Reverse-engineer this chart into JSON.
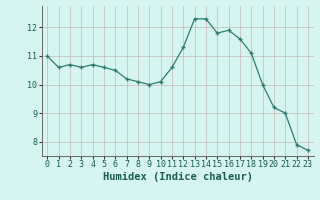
{
  "x": [
    0,
    1,
    2,
    3,
    4,
    5,
    6,
    7,
    8,
    9,
    10,
    11,
    12,
    13,
    14,
    15,
    16,
    17,
    18,
    19,
    20,
    21,
    22,
    23
  ],
  "y": [
    11.0,
    10.6,
    10.7,
    10.6,
    10.7,
    10.6,
    10.5,
    10.2,
    10.1,
    10.0,
    10.1,
    10.6,
    11.3,
    12.3,
    12.3,
    11.8,
    11.9,
    11.6,
    11.1,
    10.0,
    9.2,
    9.0,
    7.9,
    7.7
  ],
  "xlabel": "Humidex (Indice chaleur)",
  "ylim": [
    7.5,
    12.75
  ],
  "xlim": [
    -0.5,
    23.5
  ],
  "yticks": [
    8,
    9,
    10,
    11,
    12
  ],
  "xticks": [
    0,
    1,
    2,
    3,
    4,
    5,
    6,
    7,
    8,
    9,
    10,
    11,
    12,
    13,
    14,
    15,
    16,
    17,
    18,
    19,
    20,
    21,
    22,
    23
  ],
  "line_color": "#2e7d6e",
  "marker_color": "#2e7d6e",
  "bg_color": "#d6f5f0",
  "grid_color": "#c8b8b8",
  "tick_fontsize": 6,
  "label_fontsize": 7.5
}
